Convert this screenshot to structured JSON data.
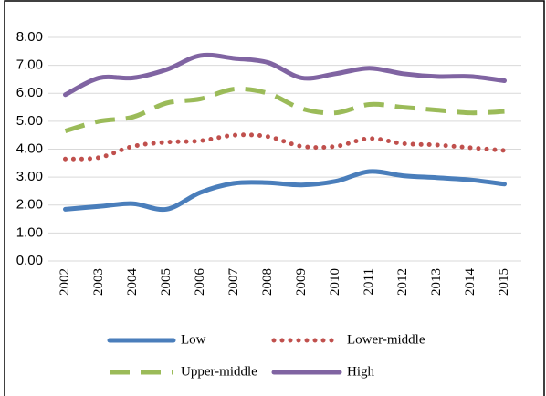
{
  "chart_data": {
    "type": "line",
    "categories": [
      "2002",
      "2003",
      "2004",
      "2005",
      "2006",
      "2007",
      "2008",
      "2009",
      "2010",
      "2011",
      "2012",
      "2013",
      "2014",
      "2015"
    ],
    "series": [
      {
        "name": "Low",
        "color": "#4a7ebb",
        "style": "solid",
        "values": [
          1.85,
          1.95,
          2.05,
          1.85,
          2.45,
          2.78,
          2.8,
          2.72,
          2.85,
          3.2,
          3.05,
          2.98,
          2.9,
          2.75
        ]
      },
      {
        "name": "Lower-middle",
        "color": "#c0504d",
        "style": "dotted",
        "values": [
          3.65,
          3.7,
          4.1,
          4.25,
          4.3,
          4.5,
          4.45,
          4.1,
          4.1,
          4.38,
          4.2,
          4.15,
          4.05,
          3.95
        ]
      },
      {
        "name": "Upper-middle",
        "color": "#9bbb59",
        "style": "dashed",
        "values": [
          4.65,
          5.0,
          5.15,
          5.65,
          5.8,
          6.15,
          6.0,
          5.45,
          5.3,
          5.6,
          5.5,
          5.4,
          5.3,
          5.35
        ]
      },
      {
        "name": "High",
        "color": "#8064a2",
        "style": "solid",
        "values": [
          5.95,
          6.55,
          6.55,
          6.85,
          7.35,
          7.25,
          7.1,
          6.55,
          6.7,
          6.9,
          6.7,
          6.6,
          6.6,
          6.45
        ]
      }
    ],
    "ylim": [
      0,
      8
    ],
    "yticks": [
      {
        "value": 0,
        "label": "0.00"
      },
      {
        "value": 1,
        "label": "1.00"
      },
      {
        "value": 2,
        "label": "2.00"
      },
      {
        "value": 3,
        "label": "3.00"
      },
      {
        "value": 4,
        "label": "4.00"
      },
      {
        "value": 5,
        "label": "5.00"
      },
      {
        "value": 6,
        "label": "6.00"
      },
      {
        "value": 7,
        "label": "7.00"
      },
      {
        "value": 8,
        "label": "8.00"
      }
    ],
    "grid": true
  }
}
